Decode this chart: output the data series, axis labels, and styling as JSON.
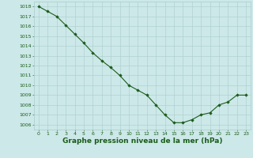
{
  "x": [
    0,
    1,
    2,
    3,
    4,
    5,
    6,
    7,
    8,
    9,
    10,
    11,
    12,
    13,
    14,
    15,
    16,
    17,
    18,
    19,
    20,
    21,
    22,
    23
  ],
  "y": [
    1018,
    1017.5,
    1017,
    1016.1,
    1015.2,
    1014.3,
    1013.3,
    1012.5,
    1011.8,
    1011.0,
    1010.0,
    1009.5,
    1009.0,
    1008.0,
    1007.0,
    1006.2,
    1006.2,
    1006.5,
    1007.0,
    1007.2,
    1008.0,
    1008.3,
    1009.0,
    1009.0
  ],
  "ylim": [
    1005.5,
    1018.5
  ],
  "xlim": [
    -0.5,
    23.5
  ],
  "yticks": [
    1006,
    1007,
    1008,
    1009,
    1010,
    1011,
    1012,
    1013,
    1014,
    1015,
    1016,
    1017,
    1018
  ],
  "xticks": [
    0,
    1,
    2,
    3,
    4,
    5,
    6,
    7,
    8,
    9,
    10,
    11,
    12,
    13,
    14,
    15,
    16,
    17,
    18,
    19,
    20,
    21,
    22,
    23
  ],
  "line_color": "#1a5c1a",
  "marker_color": "#1a5c1a",
  "bg_color": "#cce8e8",
  "grid_color": "#aacccc",
  "xlabel": "Graphe pression niveau de la mer (hPa)",
  "xlabel_color": "#1a5c1a",
  "tick_color": "#1a5c1a",
  "tick_fontsize": 4.5,
  "xlabel_fontsize": 6.5
}
